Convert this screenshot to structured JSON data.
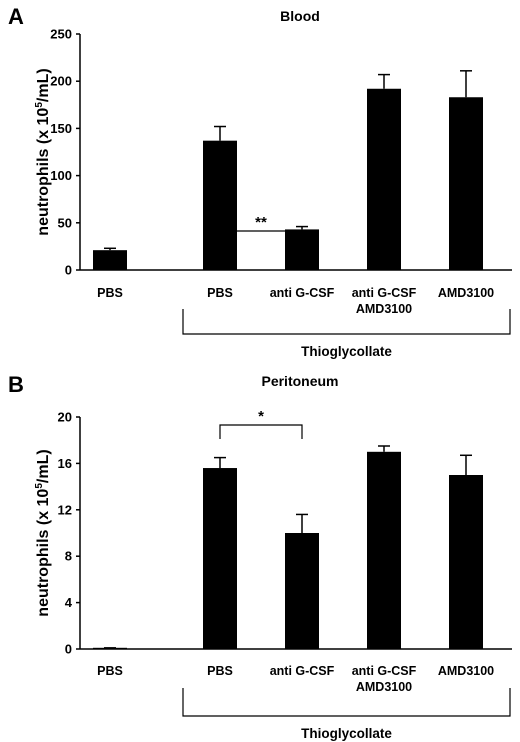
{
  "chart_data": [
    {
      "type": "bar",
      "panel_label": "A",
      "title": "Blood",
      "ylabel": {
        "pre": "neutrophils (x 10",
        "sup": "5",
        "post": "/mL)"
      },
      "ylim": [
        0,
        250
      ],
      "yticks": [
        0,
        50,
        100,
        150,
        200,
        250
      ],
      "categories": [
        {
          "lines": [
            "PBS"
          ]
        },
        {
          "lines": [
            "PBS"
          ]
        },
        {
          "lines": [
            "anti G-CSF"
          ]
        },
        {
          "lines": [
            "anti G-CSF",
            "AMD3100"
          ]
        },
        {
          "lines": [
            "AMD3100"
          ]
        }
      ],
      "values": [
        21,
        137,
        43,
        192,
        183
      ],
      "errors": [
        2,
        15,
        3,
        15,
        28
      ],
      "significance": {
        "from": 1,
        "to": 2,
        "label": "**"
      },
      "group": {
        "label": "Thioglycollate",
        "from": 1,
        "to": 4
      }
    },
    {
      "type": "bar",
      "panel_label": "B",
      "title": "Peritoneum",
      "ylabel": {
        "pre": "neutrophils (x 10",
        "sup": "5",
        "post": "/mL)"
      },
      "ylim": [
        0,
        20
      ],
      "yticks": [
        0,
        4,
        8,
        12,
        16,
        20
      ],
      "categories": [
        {
          "lines": [
            "PBS"
          ]
        },
        {
          "lines": [
            "PBS"
          ]
        },
        {
          "lines": [
            "anti G-CSF"
          ]
        },
        {
          "lines": [
            "anti G-CSF",
            "AMD3100"
          ]
        },
        {
          "lines": [
            "AMD3100"
          ]
        }
      ],
      "values": [
        0.05,
        15.6,
        10.0,
        17.0,
        15.0
      ],
      "errors": [
        0.05,
        0.9,
        1.6,
        0.5,
        1.7
      ],
      "significance": {
        "from": 1,
        "to": 2,
        "label": "*"
      },
      "group": {
        "label": "Thioglycollate",
        "from": 1,
        "to": 4
      }
    }
  ]
}
